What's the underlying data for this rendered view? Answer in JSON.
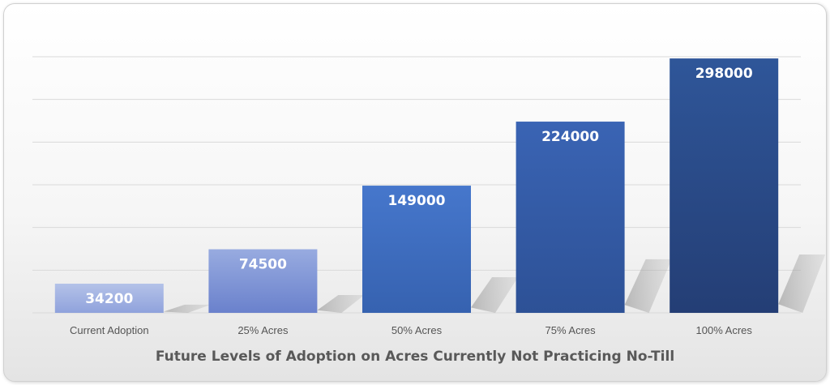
{
  "chart_data": {
    "type": "bar",
    "categories": [
      "Current Adoption",
      "25% Acres",
      "50% Acres",
      "75% Acres",
      "100% Acres"
    ],
    "values": [
      34200,
      74500,
      149000,
      224000,
      298000
    ],
    "data_labels": [
      "34200",
      "74500",
      "149000",
      "224000",
      "298000"
    ],
    "title": "",
    "xlabel": "Future Levels of Adoption on Acres Currently Not Practicing No-Till",
    "ylabel": "",
    "ylim": [
      0,
      300000
    ],
    "grid": true,
    "legend": "none"
  },
  "colors": {
    "bar_light_top": "#a6b6e2",
    "bar_light_bottom": "#6f86cf",
    "bar_mid_top": "#4274c8",
    "bar_mid_bottom": "#3560ad",
    "bar_dark_top": "#2f5699",
    "bar_dark_bottom": "#243f78",
    "gridline": "#d9d9d9"
  }
}
